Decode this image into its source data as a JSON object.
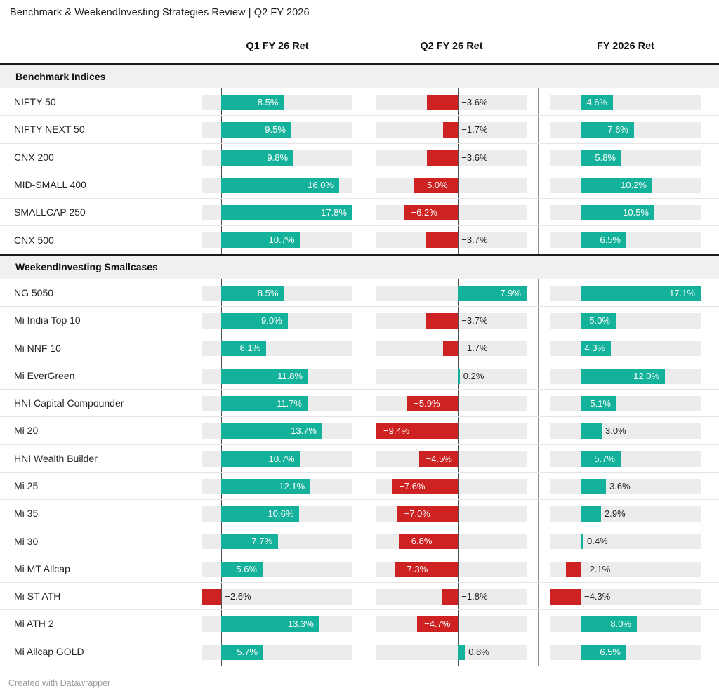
{
  "title": "Benchmark & WeekendInvesting Strategies Review | Q2 FY 2026",
  "footer": "Created with Datawrapper",
  "colors": {
    "positive": "#14b29a",
    "negative": "#ce2222",
    "track": "#ececec",
    "section_background": "#f0f0f0",
    "zero_line": "#4f4f4f"
  },
  "chart_data": {
    "type": "bar",
    "orientation": "horizontal",
    "unit": "%",
    "title": "Benchmark & WeekendInvesting Strategies Review | Q2 FY 2026",
    "columns": [
      "Q1 FY 26 Ret",
      "Q2 FY 26 Ret",
      "FY 2026 Ret"
    ],
    "column_ranges": [
      [
        -2.6,
        17.8
      ],
      [
        -9.4,
        7.9
      ],
      [
        -4.3,
        17.1
      ]
    ],
    "legend": "none",
    "grid": "zero-line-only",
    "sections": [
      {
        "name": "Benchmark Indices",
        "rows": [
          {
            "label": "NIFTY 50",
            "values": [
              8.5,
              -3.6,
              4.6
            ]
          },
          {
            "label": "NIFTY NEXT 50",
            "values": [
              9.5,
              -1.7,
              7.6
            ]
          },
          {
            "label": "CNX 200",
            "values": [
              9.8,
              -3.6,
              5.8
            ]
          },
          {
            "label": "MID-SMALL 400",
            "values": [
              16.0,
              -5.0,
              10.2
            ]
          },
          {
            "label": "SMALLCAP 250",
            "values": [
              17.8,
              -6.2,
              10.5
            ]
          },
          {
            "label": "CNX 500",
            "values": [
              10.7,
              -3.7,
              6.5
            ]
          }
        ]
      },
      {
        "name": "WeekendInvesting Smallcases",
        "rows": [
          {
            "label": "NG 5050",
            "values": [
              8.5,
              7.9,
              17.1
            ]
          },
          {
            "label": "Mi India Top 10",
            "values": [
              9.0,
              -3.7,
              5.0
            ]
          },
          {
            "label": "Mi NNF 10",
            "values": [
              6.1,
              -1.7,
              4.3
            ]
          },
          {
            "label": "Mi EverGreen",
            "values": [
              11.8,
              0.2,
              12.0
            ]
          },
          {
            "label": "HNI Capital Compounder",
            "values": [
              11.7,
              -5.9,
              5.1
            ]
          },
          {
            "label": "Mi 20",
            "values": [
              13.7,
              -9.4,
              3.0
            ]
          },
          {
            "label": "HNI Wealth Builder",
            "values": [
              10.7,
              -4.5,
              5.7
            ]
          },
          {
            "label": "Mi 25",
            "values": [
              12.1,
              -7.6,
              3.6
            ]
          },
          {
            "label": "Mi 35",
            "values": [
              10.6,
              -7.0,
              2.9
            ]
          },
          {
            "label": "Mi 30",
            "values": [
              7.7,
              -6.8,
              0.4
            ]
          },
          {
            "label": "Mi MT Allcap",
            "values": [
              5.6,
              -7.3,
              -2.1
            ]
          },
          {
            "label": "Mi ST ATH",
            "values": [
              -2.6,
              -1.8,
              -4.3
            ]
          },
          {
            "label": "Mi ATH 2",
            "values": [
              13.3,
              -4.7,
              8.0
            ]
          },
          {
            "label": "Mi Allcap GOLD",
            "values": [
              5.7,
              0.8,
              6.5
            ]
          }
        ]
      }
    ]
  }
}
